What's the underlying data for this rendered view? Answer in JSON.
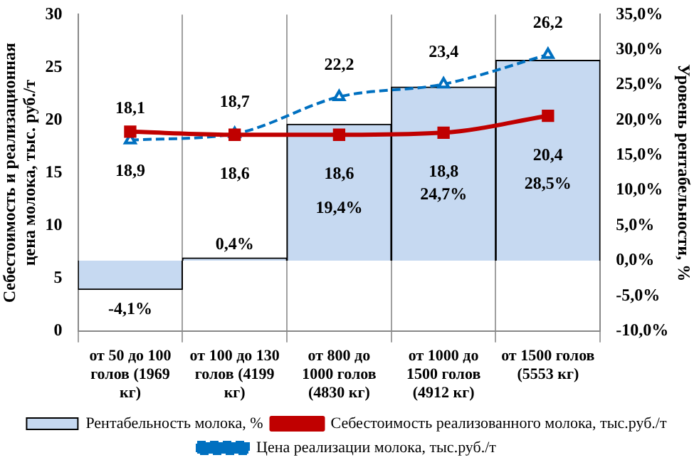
{
  "chart_data": {
    "type": "bar",
    "categories": [
      "от 50 до 100 голов (1969 кг)",
      "от 100 до 130 голов (4199 кг)",
      "от 800 до 1000 голов (4830 кг)",
      "от 1000 до 1500 голов (4912 кг)",
      "от 1500 голов (5553 кг)"
    ],
    "ylabel": "Себестоимость и реализационная цена молока, тыс. руб./т",
    "y2label": "Уровень рентабельности, %",
    "ylim": [
      0,
      30
    ],
    "yticks": [
      0,
      5,
      10,
      15,
      20,
      25,
      30
    ],
    "y2lim": [
      -10,
      35
    ],
    "y2ticks": [
      {
        "value": -10,
        "label": "-10,0%"
      },
      {
        "value": -5,
        "label": "-5,0%"
      },
      {
        "value": 0,
        "label": "0,0%"
      },
      {
        "value": 5,
        "label": "5,0%"
      },
      {
        "value": 10,
        "label": "10,0%"
      },
      {
        "value": 15,
        "label": "15,0%"
      },
      {
        "value": 20,
        "label": "20,0%"
      },
      {
        "value": 25,
        "label": "25,0%"
      },
      {
        "value": 30,
        "label": "30,0%"
      },
      {
        "value": 35,
        "label": "35,0%"
      }
    ],
    "series": [
      {
        "name": "Рентабельность молока, %",
        "axis": "y2",
        "color": "#c6d9f1",
        "values": [
          -4.1,
          0.4,
          19.4,
          24.7,
          28.5
        ],
        "value_labels": [
          "-4,1%",
          "0,4%",
          "19,4%",
          "24,7%",
          "28,5%"
        ]
      },
      {
        "name": "Себестоимость реализованного молока, тыс.руб./т",
        "type": "line",
        "color": "#c00000",
        "marker": "square",
        "line_style": "solid",
        "values": [
          18.9,
          18.6,
          18.6,
          18.8,
          20.4
        ],
        "value_labels": [
          "18,9",
          "18,6",
          "18,6",
          "18,8",
          "20,4"
        ]
      },
      {
        "name": "Цена реализации молока, тыс.руб./т",
        "type": "line",
        "color": "#0070c0",
        "marker": "triangle",
        "line_style": "dashed",
        "values": [
          18.1,
          18.7,
          22.2,
          23.4,
          26.2
        ],
        "value_labels": [
          "18,1",
          "18,7",
          "22,2",
          "23,4",
          "26,2"
        ]
      }
    ],
    "grid": "x",
    "legend": "bottom"
  }
}
